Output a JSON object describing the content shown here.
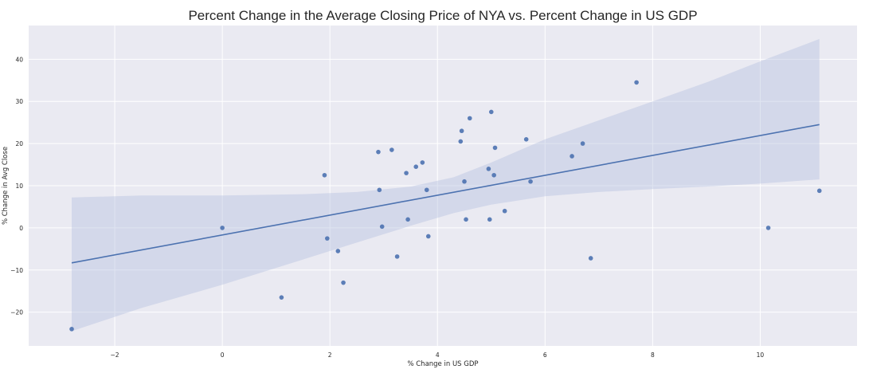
{
  "chart_data": {
    "type": "scatter",
    "title": "Percent Change in the Average Closing Price of NYA vs. Percent Change in US GDP",
    "xlabel": "% Change in US GDP",
    "ylabel": "% Change in Avg Close",
    "xlim": [
      -3.6,
      11.8
    ],
    "ylim": [
      -28,
      48
    ],
    "xticks": [
      -2,
      0,
      2,
      4,
      6,
      8,
      10
    ],
    "yticks": [
      -20,
      -10,
      0,
      10,
      20,
      30,
      40
    ],
    "grid": true,
    "colors": {
      "background": "#eaeaf2",
      "grid": "#ffffff",
      "point": "#4c72b0",
      "line": "#4c72b0",
      "band": "#b8c3e0"
    },
    "points": [
      {
        "x": -2.8,
        "y": -24
      },
      {
        "x": 0.0,
        "y": 0
      },
      {
        "x": 1.1,
        "y": -16.5
      },
      {
        "x": 1.9,
        "y": 12.5
      },
      {
        "x": 1.95,
        "y": -2.5
      },
      {
        "x": 2.15,
        "y": -5.5
      },
      {
        "x": 2.25,
        "y": -13
      },
      {
        "x": 2.9,
        "y": 18
      },
      {
        "x": 2.92,
        "y": 9
      },
      {
        "x": 2.97,
        "y": 0.3
      },
      {
        "x": 3.15,
        "y": 18.5
      },
      {
        "x": 3.25,
        "y": -6.8
      },
      {
        "x": 3.42,
        "y": 13
      },
      {
        "x": 3.45,
        "y": 2
      },
      {
        "x": 3.6,
        "y": 14.5
      },
      {
        "x": 3.72,
        "y": 15.5
      },
      {
        "x": 3.8,
        "y": 9
      },
      {
        "x": 3.83,
        "y": -2
      },
      {
        "x": 4.43,
        "y": 20.5
      },
      {
        "x": 4.45,
        "y": 23
      },
      {
        "x": 4.5,
        "y": 11
      },
      {
        "x": 4.53,
        "y": 2
      },
      {
        "x": 4.6,
        "y": 26
      },
      {
        "x": 4.95,
        "y": 14
      },
      {
        "x": 4.97,
        "y": 2
      },
      {
        "x": 5.0,
        "y": 27.5
      },
      {
        "x": 5.05,
        "y": 12.5
      },
      {
        "x": 5.07,
        "y": 19
      },
      {
        "x": 5.25,
        "y": 4
      },
      {
        "x": 5.65,
        "y": 21
      },
      {
        "x": 5.73,
        "y": 11
      },
      {
        "x": 6.5,
        "y": 17
      },
      {
        "x": 6.7,
        "y": 20
      },
      {
        "x": 6.85,
        "y": -7.2
      },
      {
        "x": 7.7,
        "y": 34.5
      },
      {
        "x": 10.15,
        "y": 0
      },
      {
        "x": 11.1,
        "y": 8.8
      }
    ],
    "regression": {
      "x": [
        -2.8,
        11.1
      ],
      "y": [
        -8.3,
        24.5
      ]
    },
    "confidence_band": {
      "x": [
        -2.8,
        -1.5,
        0.0,
        1.5,
        2.5,
        3.5,
        4.3,
        5.0,
        6.0,
        7.0,
        8.0,
        9.0,
        10.0,
        11.1
      ],
      "upper": [
        7.2,
        7.7,
        7.7,
        8.0,
        8.5,
        9.8,
        12.0,
        15.5,
        21.0,
        25.5,
        30.0,
        34.5,
        39.5,
        44.8
      ],
      "lower": [
        -24.5,
        -19.0,
        -13.5,
        -7.5,
        -3.5,
        0.5,
        3.5,
        5.5,
        7.5,
        8.5,
        9.2,
        9.8,
        10.5,
        11.5
      ]
    }
  }
}
